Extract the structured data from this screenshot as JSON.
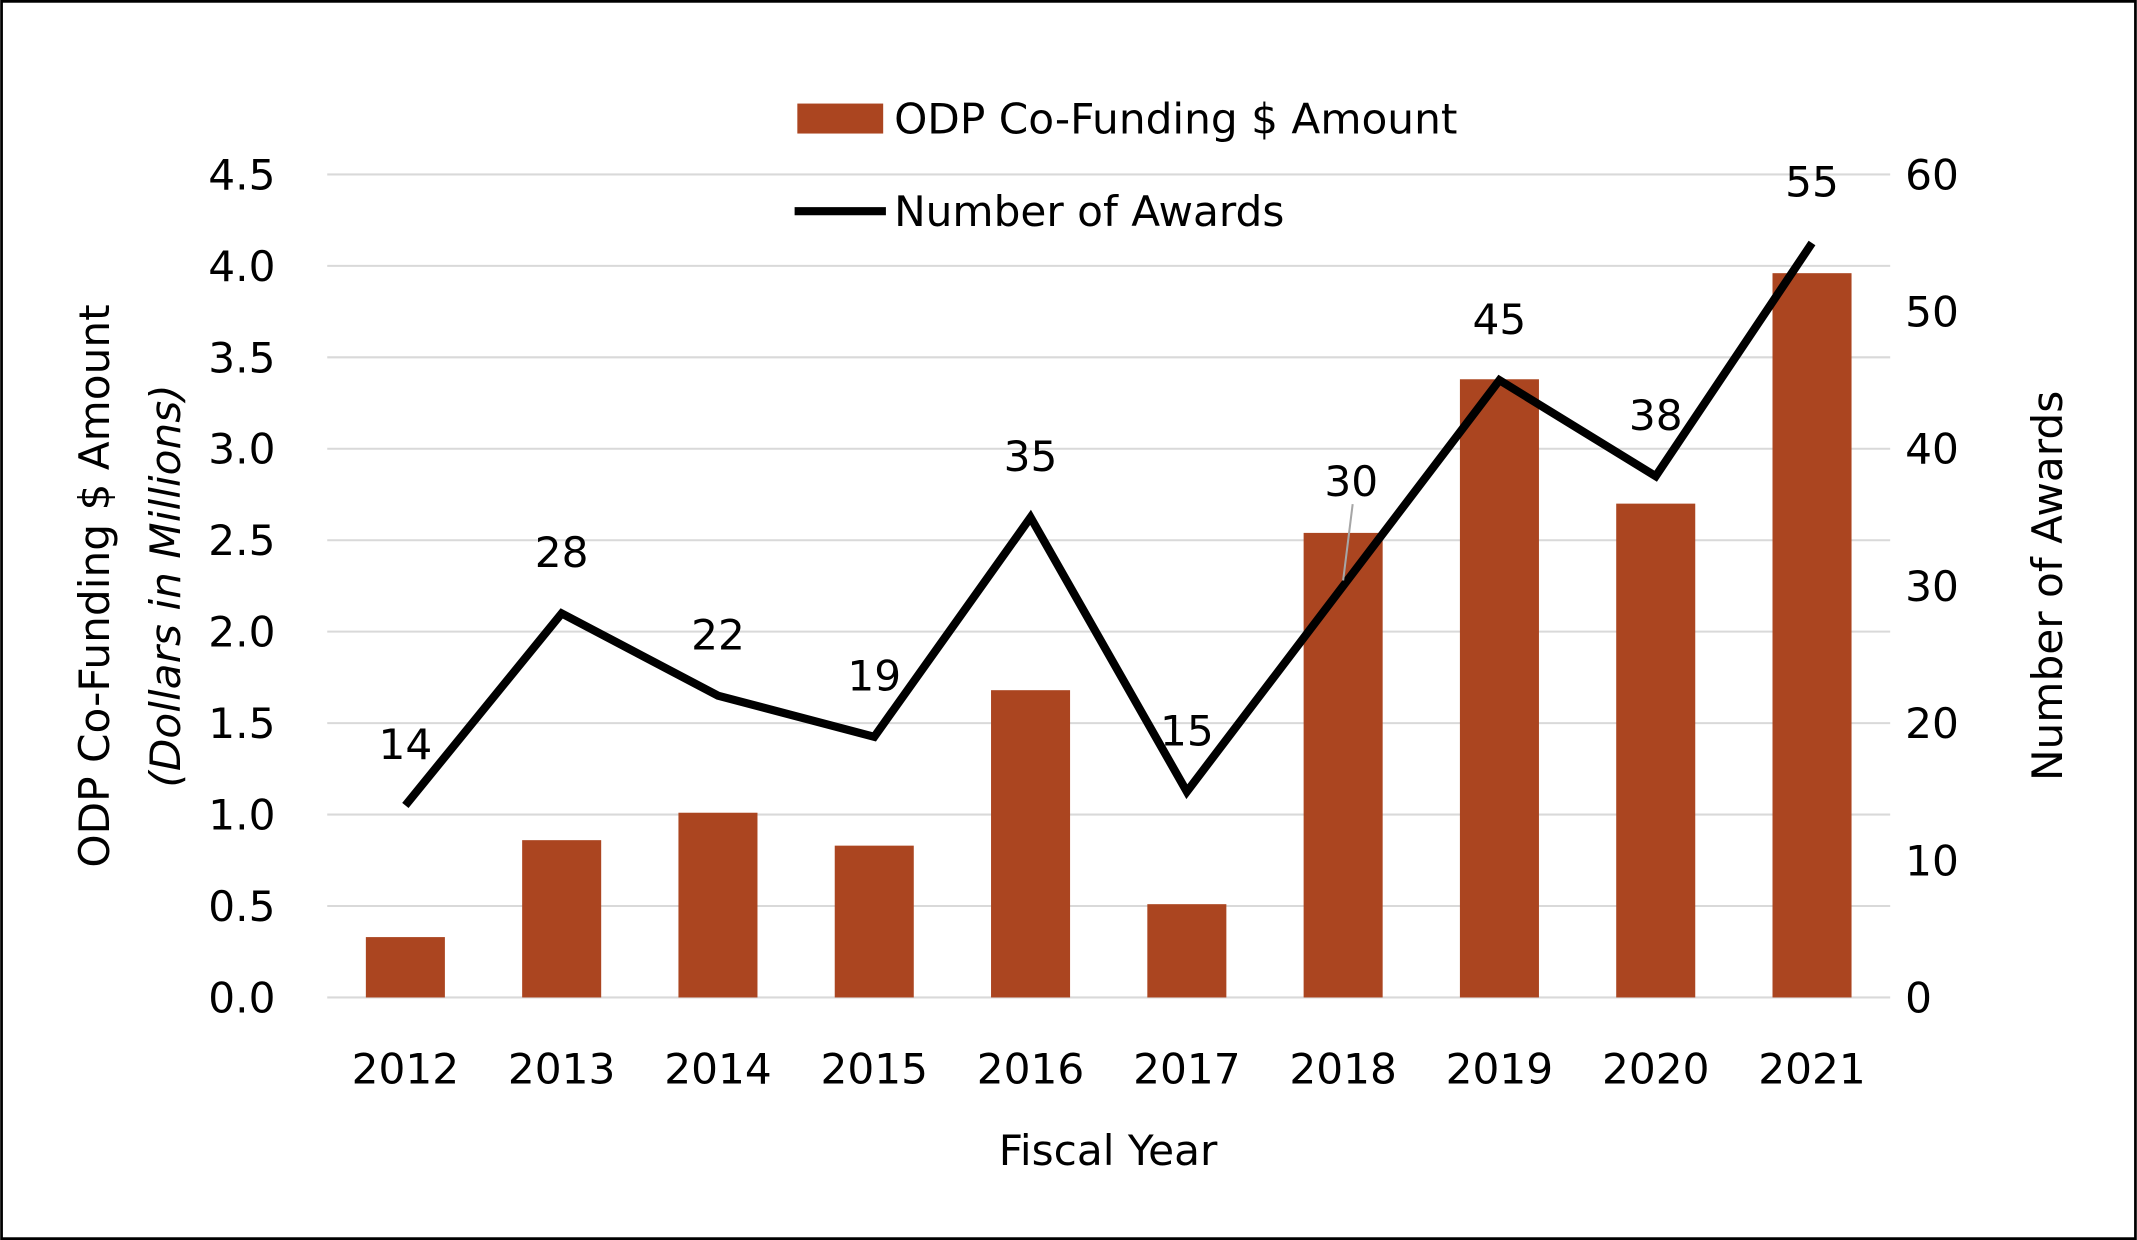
{
  "chart_data": {
    "type": "bar+line",
    "categories": [
      "2012",
      "2013",
      "2014",
      "2015",
      "2016",
      "2017",
      "2018",
      "2019",
      "2020",
      "2021"
    ],
    "series": [
      {
        "name": "ODP Co-Funding $ Amount",
        "type": "bar",
        "axis": "left",
        "color": "#AB4520",
        "values": [
          0.33,
          0.86,
          1.01,
          0.83,
          1.68,
          0.51,
          2.54,
          3.38,
          2.7,
          3.96
        ]
      },
      {
        "name": "Number of Awards",
        "type": "line",
        "axis": "right",
        "color": "#000000",
        "values": [
          14,
          28,
          22,
          19,
          35,
          15,
          30,
          45,
          38,
          55
        ]
      }
    ],
    "xlabel": "Fiscal Year",
    "ylabel": "ODP Co-Funding $ Amount",
    "ylabel_sub": "(Dollars in Millions)",
    "y2label": "Number of Awards",
    "ylim": [
      0,
      4.5
    ],
    "y2lim": [
      0,
      60
    ],
    "yticks": [
      "0.0",
      "0.5",
      "1.0",
      "1.5",
      "2.0",
      "2.5",
      "3.0",
      "3.5",
      "4.0",
      "4.5"
    ],
    "y2ticks": [
      "0",
      "10",
      "20",
      "30",
      "40",
      "50",
      "60"
    ],
    "grid": true,
    "legend": "top-center"
  }
}
